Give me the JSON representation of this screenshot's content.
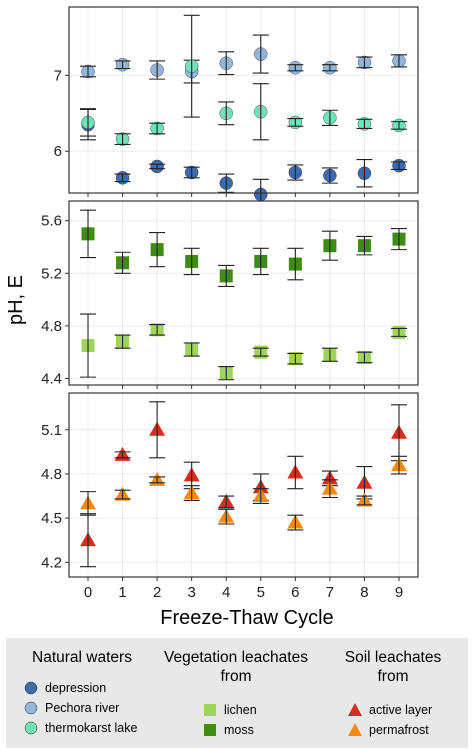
{
  "colors": {
    "depression": "#3d69ad",
    "pechora": "#92b5dc",
    "thermokarst": "#6fe3b8",
    "lichen": "#9fd45a",
    "moss": "#3e8c14",
    "active_layer": "#d42e1f",
    "permafrost": "#f28a14"
  },
  "chart_data": [
    {
      "type": "scatter",
      "panel": "natural-waters",
      "x": [
        0,
        1,
        2,
        3,
        4,
        5,
        6,
        7,
        8,
        9
      ],
      "ylim": [
        5.45,
        7.9
      ],
      "yticks": [
        6,
        7
      ],
      "ytick_labels": [
        "6",
        "7"
      ],
      "grid": true,
      "series": [
        {
          "name": "depression",
          "color_key": "depression",
          "marker": "circle",
          "values": [
            6.35,
            5.65,
            5.8,
            5.72,
            5.58,
            5.43,
            5.72,
            5.68,
            5.71,
            5.81
          ],
          "errors": [
            0.2,
            0.05,
            0.03,
            0.07,
            0.12,
            0.2,
            0.1,
            0.1,
            0.18,
            0.05
          ]
        },
        {
          "name": "Pechora river",
          "color_key": "pechora",
          "marker": "circle",
          "values": [
            7.05,
            7.14,
            7.07,
            7.05,
            7.16,
            7.28,
            7.1,
            7.1,
            7.17,
            7.19
          ],
          "errors": [
            0.07,
            0.05,
            0.12,
            0.15,
            0.15,
            0.25,
            0.04,
            0.04,
            0.07,
            0.08
          ]
        },
        {
          "name": "thermokarst lake",
          "color_key": "thermokarst",
          "marker": "circle",
          "values": [
            6.38,
            6.16,
            6.3,
            7.12,
            6.5,
            6.52,
            6.38,
            6.44,
            6.36,
            6.34
          ],
          "errors": [
            0.18,
            0.07,
            0.07,
            0.67,
            0.15,
            0.37,
            0.05,
            0.1,
            0.06,
            0.05
          ]
        }
      ]
    },
    {
      "type": "scatter",
      "panel": "vegetation-leachates",
      "x": [
        0,
        1,
        2,
        3,
        4,
        5,
        6,
        7,
        8,
        9
      ],
      "ylim": [
        4.35,
        5.75
      ],
      "yticks": [
        4.4,
        4.8,
        5.2,
        5.6
      ],
      "ytick_labels": [
        "4.4",
        "4.8",
        "5.2",
        "5.6"
      ],
      "grid": true,
      "series": [
        {
          "name": "lichen",
          "color_key": "lichen",
          "marker": "square",
          "values": [
            4.65,
            4.68,
            4.77,
            4.62,
            4.44,
            4.6,
            4.55,
            4.58,
            4.56,
            4.75
          ],
          "errors": [
            0.24,
            0.05,
            0.04,
            0.05,
            0.05,
            0.03,
            0.04,
            0.05,
            0.04,
            0.03
          ]
        },
        {
          "name": "moss",
          "color_key": "moss",
          "marker": "square",
          "values": [
            5.5,
            5.28,
            5.38,
            5.29,
            5.18,
            5.29,
            5.27,
            5.41,
            5.41,
            5.46
          ],
          "errors": [
            0.18,
            0.08,
            0.13,
            0.1,
            0.08,
            0.1,
            0.12,
            0.11,
            0.07,
            0.08
          ]
        }
      ]
    },
    {
      "type": "scatter",
      "panel": "soil-leachates",
      "x": [
        0,
        1,
        2,
        3,
        4,
        5,
        6,
        7,
        8,
        9
      ],
      "xlabel": "Freeze-Thaw Cycle",
      "xtick_labels": [
        "0",
        "1",
        "2",
        "3",
        "4",
        "5",
        "6",
        "7",
        "8",
        "9"
      ],
      "ylim": [
        4.1,
        5.35
      ],
      "yticks": [
        4.2,
        4.5,
        4.8,
        5.1
      ],
      "ytick_labels": [
        "4.2",
        "4.5",
        "4.8",
        "5.1"
      ],
      "grid": true,
      "series": [
        {
          "name": "active layer",
          "color_key": "active_layer",
          "marker": "triangle",
          "values": [
            4.35,
            4.93,
            5.1,
            4.79,
            4.61,
            4.71,
            4.81,
            4.77,
            4.74,
            5.08
          ],
          "errors": [
            0.18,
            0.02,
            0.19,
            0.09,
            0.04,
            0.09,
            0.11,
            0.05,
            0.11,
            0.19
          ]
        },
        {
          "name": "permafrost",
          "color_key": "permafrost",
          "marker": "triangle",
          "values": [
            4.6,
            4.66,
            4.76,
            4.67,
            4.51,
            4.65,
            4.47,
            4.7,
            4.62,
            4.86
          ],
          "errors": [
            0.08,
            0.03,
            0.02,
            0.05,
            0.05,
            0.05,
            0.05,
            0.06,
            0.03,
            0.06
          ]
        }
      ]
    }
  ],
  "labels": {
    "ylabel": "pH, E",
    "xlabel": "Freeze-Thaw Cycle"
  },
  "legend": {
    "groups": [
      {
        "title": "Natural waters",
        "items": [
          {
            "label": "depression",
            "color_key": "depression",
            "marker": "circle"
          },
          {
            "label": "Pechora river",
            "color_key": "pechora",
            "marker": "circle"
          },
          {
            "label": "thermokarst lake",
            "color_key": "thermokarst",
            "marker": "circle"
          }
        ]
      },
      {
        "title": "Vegetation leachates from",
        "items": [
          {
            "label": "lichen",
            "color_key": "lichen",
            "marker": "square"
          },
          {
            "label": "moss",
            "color_key": "moss",
            "marker": "square"
          }
        ]
      },
      {
        "title": "Soil leachates from",
        "items": [
          {
            "label": "active layer",
            "color_key": "active_layer",
            "marker": "triangle"
          },
          {
            "label": "permafrost",
            "color_key": "permafrost",
            "marker": "triangle"
          }
        ]
      }
    ]
  }
}
